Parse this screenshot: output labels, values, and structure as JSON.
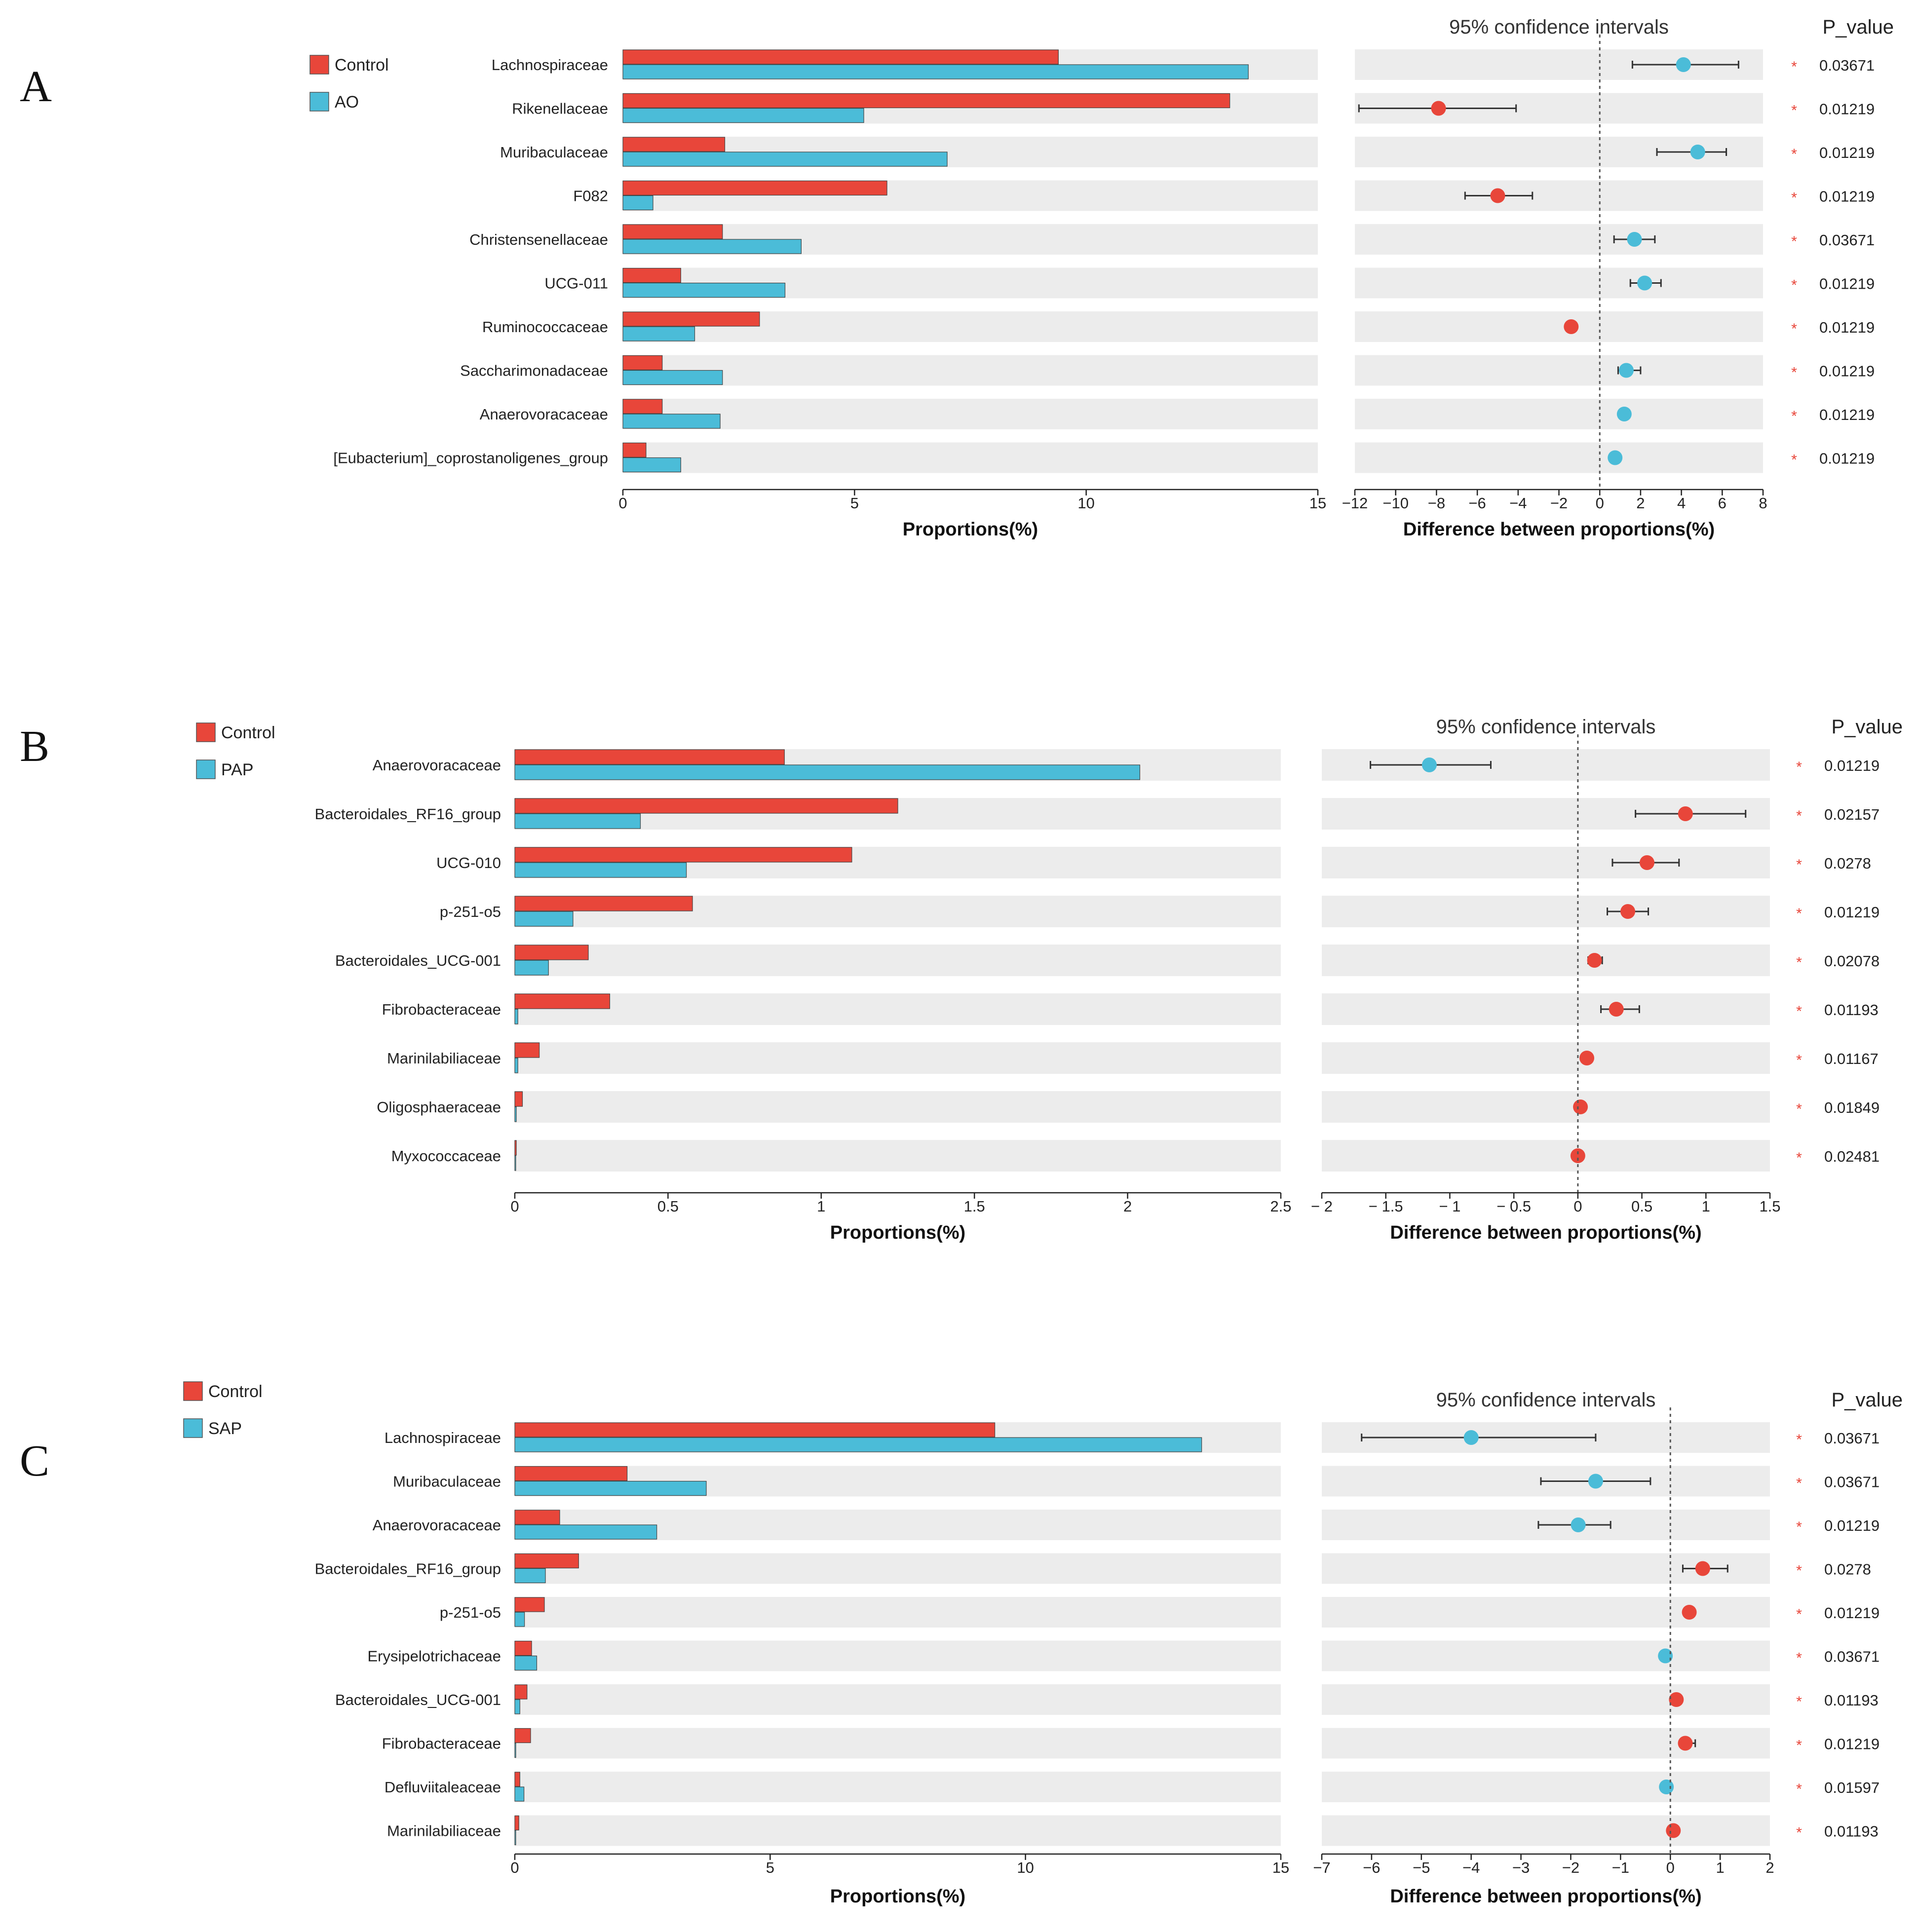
{
  "colors": {
    "control": "#e8463a",
    "treatment": "#4bbcd8",
    "stripe": "#ececec"
  },
  "chart_data": [
    {
      "type": "bar",
      "panel_label": "A",
      "title": "",
      "xlabel": "Proportions(%)",
      "ci_title": "95% confidence intervals",
      "ci_xlabel": "Difference between proportions(%)",
      "p_header": "P_value",
      "legend": [
        "Control",
        "AO"
      ],
      "xlim": [
        0,
        15
      ],
      "xticks": [
        0,
        5,
        10,
        15
      ],
      "ci_xlim": [
        -12,
        8
      ],
      "ci_xticks": [
        -12,
        -10,
        -8,
        -6,
        -4,
        -2,
        0,
        2,
        4,
        6,
        8
      ],
      "ci_xtick_labels": [
        "−12",
        "−10",
        "−8",
        "−6",
        "−4",
        "−2",
        "0",
        "2",
        "4",
        "6",
        "8"
      ],
      "categories": [
        "Lachnospiraceae",
        "Rikenellaceae",
        "Muribaculaceae",
        "F082",
        "Christensenellaceae",
        "UCG-011",
        "Ruminococcaceae",
        "Saccharimonadaceae",
        "Anaerovoracaceae",
        "[Eubacterium]_coprostanoligenes_group"
      ],
      "series": [
        {
          "name": "Control",
          "values": [
            9.4,
            13.1,
            2.2,
            5.7,
            2.15,
            1.25,
            2.95,
            0.85,
            0.85,
            0.5
          ]
        },
        {
          "name": "AO",
          "values": [
            13.5,
            5.2,
            7.0,
            0.65,
            3.85,
            3.5,
            1.55,
            2.15,
            2.1,
            1.25
          ]
        }
      ],
      "difference": [
        4.1,
        -7.9,
        4.8,
        -5.0,
        1.7,
        2.2,
        -1.4,
        1.3,
        1.2,
        0.75
      ],
      "ci_low": [
        1.6,
        -11.8,
        2.8,
        -6.6,
        0.7,
        1.5,
        -1.6,
        0.9,
        1.0,
        0.55
      ],
      "ci_high": [
        6.8,
        -4.1,
        6.2,
        -3.3,
        2.7,
        3.0,
        -1.2,
        2.0,
        1.4,
        0.95
      ],
      "higher_group": [
        "AO",
        "Control",
        "AO",
        "Control",
        "AO",
        "AO",
        "Control",
        "AO",
        "AO",
        "AO"
      ],
      "p_values": [
        "0.03671",
        "0.01219",
        "0.01219",
        "0.01219",
        "0.03671",
        "0.01219",
        "0.01219",
        "0.01219",
        "0.01219",
        "0.01219"
      ]
    },
    {
      "type": "bar",
      "panel_label": "B",
      "title": "",
      "xlabel": "Proportions(%)",
      "ci_title": "95% confidence intervals",
      "ci_xlabel": "Difference between proportions(%)",
      "p_header": "P_value",
      "legend": [
        "Control",
        "PAP"
      ],
      "xlim": [
        0,
        2.5
      ],
      "xticks": [
        0,
        0.5,
        1,
        1.5,
        2,
        2.5
      ],
      "ci_xlim": [
        -2,
        1.5
      ],
      "ci_xticks": [
        -2,
        -1.5,
        -1,
        -0.5,
        0,
        0.5,
        1,
        1.5
      ],
      "ci_xtick_labels": [
        "− 2",
        "− 1.5",
        "− 1",
        "− 0.5",
        "0",
        "0.5",
        "1",
        "1.5"
      ],
      "categories": [
        "Anaerovoracaceae",
        "Bacteroidales_RF16_group",
        "UCG-010",
        "p-251-o5",
        "Bacteroidales_UCG-001",
        "Fibrobacteraceae",
        "Marinilabiliaceae",
        "Oligosphaeraceae",
        "Myxococcaceae"
      ],
      "series": [
        {
          "name": "Control",
          "values": [
            0.88,
            1.25,
            1.1,
            0.58,
            0.24,
            0.31,
            0.08,
            0.025,
            0.005
          ]
        },
        {
          "name": "PAP",
          "values": [
            2.04,
            0.41,
            0.56,
            0.19,
            0.11,
            0.01,
            0.01,
            0.005,
            0.003
          ]
        }
      ],
      "difference": [
        -1.16,
        0.84,
        0.54,
        0.39,
        0.13,
        0.3,
        0.07,
        0.02,
        0.0
      ],
      "ci_low": [
        -1.62,
        0.45,
        0.27,
        0.23,
        0.08,
        0.18,
        0.05,
        0.01,
        -0.005
      ],
      "ci_high": [
        -0.68,
        1.31,
        0.79,
        0.55,
        0.19,
        0.48,
        0.09,
        0.03,
        0.005
      ],
      "higher_group": [
        "PAP",
        "Control",
        "Control",
        "Control",
        "Control",
        "Control",
        "Control",
        "Control",
        "Control"
      ],
      "p_values": [
        "0.01219",
        "0.02157",
        "0.0278",
        "0.01219",
        "0.02078",
        "0.01193",
        "0.01167",
        "0.01849",
        "0.02481"
      ]
    },
    {
      "type": "bar",
      "panel_label": "C",
      "title": "",
      "xlabel": "Proportions(%)",
      "ci_title": "95% confidence intervals",
      "ci_xlabel": "Difference between proportions(%)",
      "p_header": "P_value",
      "legend": [
        "Control",
        "SAP"
      ],
      "xlim": [
        0,
        15
      ],
      "xticks": [
        0,
        5,
        10,
        15
      ],
      "ci_xlim": [
        -7,
        2
      ],
      "ci_xticks": [
        -7,
        -6,
        -5,
        -4,
        -3,
        -2,
        -1,
        0,
        1,
        2
      ],
      "ci_xtick_labels": [
        "−7",
        "−6",
        "−5",
        "−4",
        "−3",
        "−2",
        "−1",
        "0",
        "1",
        "2"
      ],
      "categories": [
        "Lachnospiraceae",
        "Muribaculaceae",
        "Anaerovoracaceae",
        "Bacteroidales_RF16_group",
        "p-251-o5",
        "Erysipelotrichaceae",
        "Bacteroidales_UCG-001",
        "Fibrobacteraceae",
        "Defluviitaleaceae",
        "Marinilabiliaceae"
      ],
      "series": [
        {
          "name": "Control",
          "values": [
            9.4,
            2.2,
            0.88,
            1.25,
            0.58,
            0.33,
            0.24,
            0.31,
            0.1,
            0.08
          ]
        },
        {
          "name": "SAP",
          "values": [
            13.45,
            3.75,
            2.78,
            0.6,
            0.19,
            0.43,
            0.1,
            0.02,
            0.18,
            0.01
          ]
        }
      ],
      "difference": [
        -4.0,
        -1.5,
        -1.85,
        0.65,
        0.38,
        -0.1,
        0.12,
        0.3,
        -0.08,
        0.06
      ],
      "ci_low": [
        -6.2,
        -2.6,
        -2.65,
        0.25,
        0.33,
        -0.15,
        0.08,
        0.2,
        -0.12,
        0.03
      ],
      "ci_high": [
        -1.5,
        -0.4,
        -1.2,
        1.15,
        0.43,
        -0.05,
        0.16,
        0.5,
        -0.04,
        0.09
      ],
      "higher_group": [
        "SAP",
        "SAP",
        "SAP",
        "Control",
        "Control",
        "SAP",
        "Control",
        "Control",
        "SAP",
        "Control"
      ],
      "p_values": [
        "0.03671",
        "0.03671",
        "0.01219",
        "0.0278",
        "0.01219",
        "0.03671",
        "0.01193",
        "0.01219",
        "0.01597",
        "0.01193"
      ]
    }
  ]
}
